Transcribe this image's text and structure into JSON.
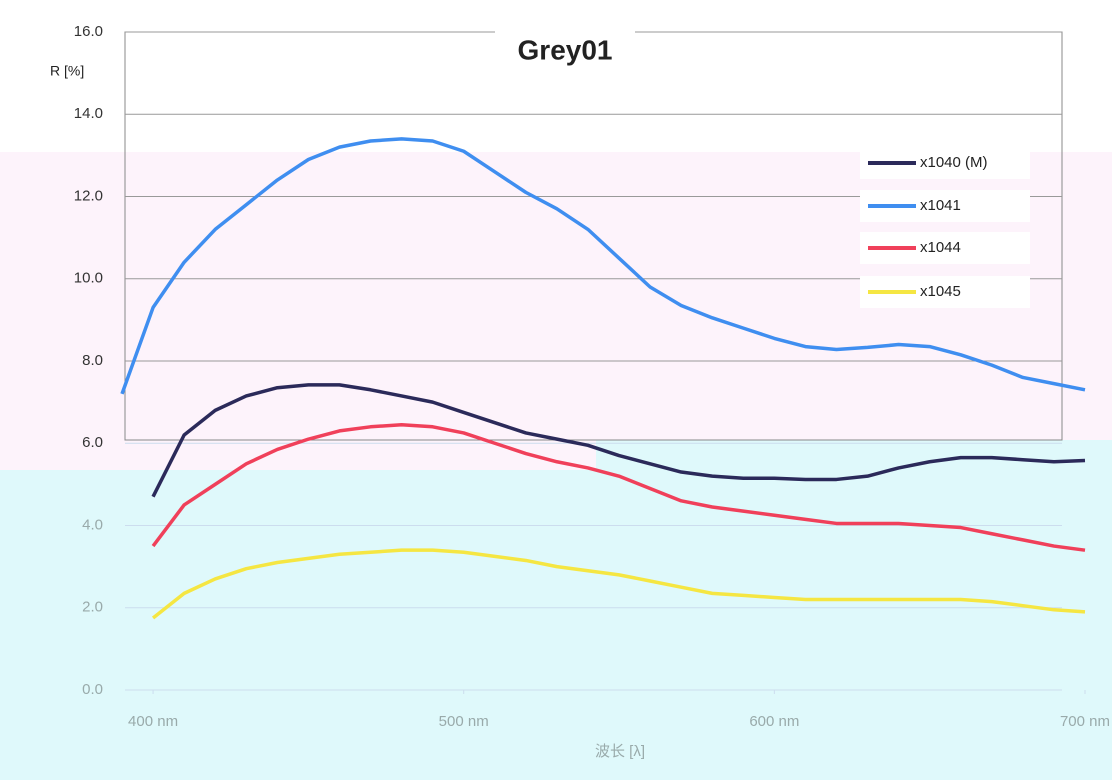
{
  "chart_data": {
    "type": "line",
    "title": "Grey01",
    "ylabel": "R [%]",
    "xlabel": "波长 [λ]",
    "x": [
      390,
      400,
      410,
      420,
      430,
      440,
      450,
      460,
      470,
      480,
      490,
      500,
      510,
      520,
      530,
      540,
      550,
      560,
      570,
      580,
      590,
      600,
      610,
      620,
      630,
      640,
      650,
      660,
      670,
      680,
      690,
      700
    ],
    "xlim": [
      390,
      700
    ],
    "xticks": [
      {
        "value": 400,
        "label": "400 nm"
      },
      {
        "value": 500,
        "label": "500 nm"
      },
      {
        "value": 600,
        "label": "600 nm"
      },
      {
        "value": 700,
        "label": "700 nm"
      }
    ],
    "ylim": [
      0,
      16
    ],
    "yticks": [
      {
        "value": 0,
        "label": "0.0"
      },
      {
        "value": 2,
        "label": "2.0"
      },
      {
        "value": 4,
        "label": "4.0"
      },
      {
        "value": 6,
        "label": "6.0"
      },
      {
        "value": 8,
        "label": "8.0"
      },
      {
        "value": 10,
        "label": "10.0"
      },
      {
        "value": 12,
        "label": "12.0"
      },
      {
        "value": 14,
        "label": "14.0"
      },
      {
        "value": 16,
        "label": "16.0"
      }
    ],
    "grid": true,
    "legend": "upper right",
    "series": [
      {
        "name": "x1040 (M)",
        "color": "#2b2a5a",
        "values": [
          null,
          4.7,
          6.2,
          6.8,
          7.15,
          7.35,
          7.42,
          7.42,
          7.3,
          7.15,
          7.0,
          6.75,
          6.5,
          6.25,
          6.1,
          5.95,
          5.7,
          5.5,
          5.3,
          5.2,
          5.15,
          5.15,
          5.12,
          5.12,
          5.2,
          5.4,
          5.55,
          5.65,
          5.65,
          5.6,
          5.55,
          5.58
        ]
      },
      {
        "name": "x1041",
        "color": "#3f8ef0",
        "values": [
          7.2,
          9.3,
          10.4,
          11.2,
          11.8,
          12.4,
          12.9,
          13.2,
          13.35,
          13.4,
          13.35,
          13.1,
          12.6,
          12.1,
          11.7,
          11.2,
          10.5,
          9.8,
          9.35,
          9.05,
          8.8,
          8.55,
          8.35,
          8.28,
          8.33,
          8.4,
          8.35,
          8.15,
          7.9,
          7.6,
          7.45,
          7.3
        ]
      },
      {
        "name": "x1044",
        "color": "#f0405a",
        "values": [
          null,
          3.5,
          4.5,
          5.0,
          5.5,
          5.85,
          6.1,
          6.3,
          6.4,
          6.45,
          6.4,
          6.25,
          6.0,
          5.75,
          5.55,
          5.4,
          5.2,
          4.9,
          4.6,
          4.45,
          4.35,
          4.25,
          4.15,
          4.05,
          4.05,
          4.05,
          4.0,
          3.95,
          3.8,
          3.65,
          3.5,
          3.4
        ]
      },
      {
        "name": "x1045",
        "color": "#f5e642",
        "values": [
          null,
          1.75,
          2.35,
          2.7,
          2.95,
          3.1,
          3.2,
          3.3,
          3.35,
          3.4,
          3.4,
          3.35,
          3.25,
          3.15,
          3.0,
          2.9,
          2.8,
          2.65,
          2.5,
          2.35,
          2.3,
          2.25,
          2.2,
          2.2,
          2.2,
          2.2,
          2.2,
          2.2,
          2.15,
          2.05,
          1.95,
          1.9
        ]
      }
    ]
  }
}
